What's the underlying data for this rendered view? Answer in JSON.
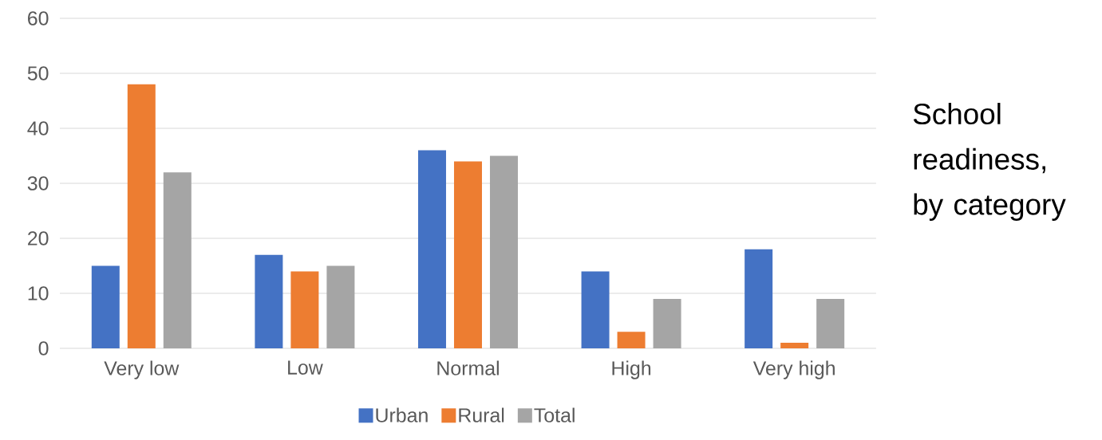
{
  "chart_data": {
    "type": "bar",
    "title": "School readiness, by category",
    "categories": [
      "Very low",
      "Low",
      "Normal",
      "High",
      "Very high"
    ],
    "series": [
      {
        "name": "Urban",
        "color": "#4472c4",
        "values": [
          15,
          17,
          36,
          14,
          18
        ]
      },
      {
        "name": "Rural",
        "color": "#ed7d31",
        "values": [
          48,
          14,
          34,
          3,
          1
        ]
      },
      {
        "name": "Total",
        "color": "#a5a5a5",
        "values": [
          32,
          15,
          35,
          9,
          9
        ]
      }
    ],
    "ylim": [
      0,
      60
    ],
    "yticks": [
      0,
      10,
      20,
      30,
      40,
      50,
      60
    ],
    "grid": "y",
    "legend": "bottom"
  }
}
